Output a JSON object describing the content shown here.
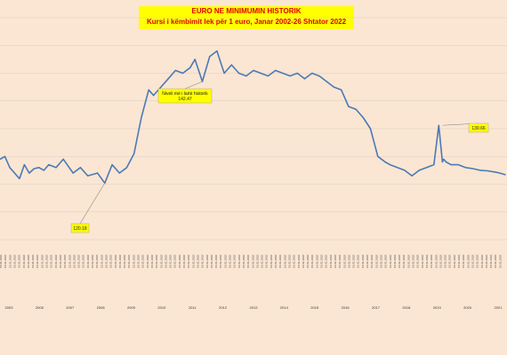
{
  "chart_data": {
    "type": "line",
    "title": "EURO NE MINIMUMIN HISTORIK",
    "subtitle": "Kursi i këmbimit lek për 1 euro, Janar 2002-26 Shtator 2022",
    "xlabel": "",
    "ylabel": "",
    "ylim": [
      110,
      150
    ],
    "xlim": [
      2002.0,
      2022.8
    ],
    "grid": true,
    "legend": "none",
    "line_color": "#4a7ab5",
    "callout_color": "#ffff00",
    "years": [
      "2003",
      "2005",
      "2007",
      "2008",
      "2009",
      "2010",
      "2011",
      "2012",
      "2013",
      "2014",
      "2015",
      "2016",
      "2017",
      "2018",
      "2019",
      "2020",
      "2021"
    ],
    "series": [
      {
        "x": [
          2002.0,
          2002.2,
          2002.4,
          2002.6,
          2002.8,
          2003.0,
          2003.2,
          2003.4,
          2003.6,
          2003.8,
          2004.0,
          2004.3,
          2004.6,
          2005.0,
          2005.3,
          2005.6,
          2006.0,
          2006.3,
          2006.6,
          2006.9,
          2007.2,
          2007.5,
          2007.8,
          2008.1,
          2008.3,
          2008.6,
          2008.9,
          2009.2,
          2009.5,
          2009.8,
          2010.0,
          2010.3,
          2010.6,
          2010.9,
          2011.2,
          2011.5,
          2011.8,
          2012.1,
          2012.4,
          2012.7,
          2013.0,
          2013.3,
          2013.6,
          2013.9,
          2014.2,
          2014.5,
          2014.8,
          2015.1,
          2015.4,
          2015.7,
          2016.0,
          2016.3,
          2016.6,
          2016.9,
          2017.2,
          2017.5,
          2017.8,
          2018.0,
          2018.3,
          2018.6,
          2018.9,
          2019.2,
          2019.5,
          2019.8,
          2020.0,
          2020.15,
          2020.2,
          2020.3,
          2020.5,
          2020.8,
          2021.1,
          2021.4,
          2021.7,
          2022.0,
          2022.3,
          2022.5,
          2022.73
        ],
        "y": [
          124.5,
          125.0,
          123.0,
          122.0,
          121.0,
          123.5,
          122.0,
          122.8,
          123.0,
          122.5,
          123.5,
          123.0,
          124.5,
          122.0,
          123.0,
          121.5,
          122.0,
          120.2,
          123.5,
          122.0,
          123.0,
          125.5,
          132.0,
          137.0,
          136.0,
          137.5,
          139.0,
          140.5,
          140.0,
          141.0,
          142.5,
          138.5,
          143.0,
          144.0,
          140.0,
          141.5,
          140.0,
          139.5,
          140.5,
          140.0,
          139.5,
          140.5,
          140.0,
          139.5,
          140.0,
          139.0,
          140.0,
          139.5,
          138.5,
          137.5,
          137.0,
          134.0,
          133.5,
          132.0,
          130.0,
          125.0,
          124.0,
          123.5,
          123.0,
          122.5,
          121.5,
          122.5,
          123.0,
          123.5,
          130.6,
          124.0,
          124.5,
          124.0,
          123.5,
          123.5,
          123.0,
          122.8,
          122.5,
          122.4,
          122.2,
          122.0,
          121.7
        ]
      }
    ],
    "annotations": [
      {
        "text": "120.18",
        "x": 2006.3,
        "y": 120.2
      },
      {
        "text": "Niveli më i lartë historik",
        "x": 2010.3,
        "y": 138.5
      },
      {
        "text": "142.47",
        "x": 2010.3,
        "y": 138.5
      },
      {
        "text": "130.66",
        "x": 2020.15,
        "y": 130.6
      }
    ]
  }
}
